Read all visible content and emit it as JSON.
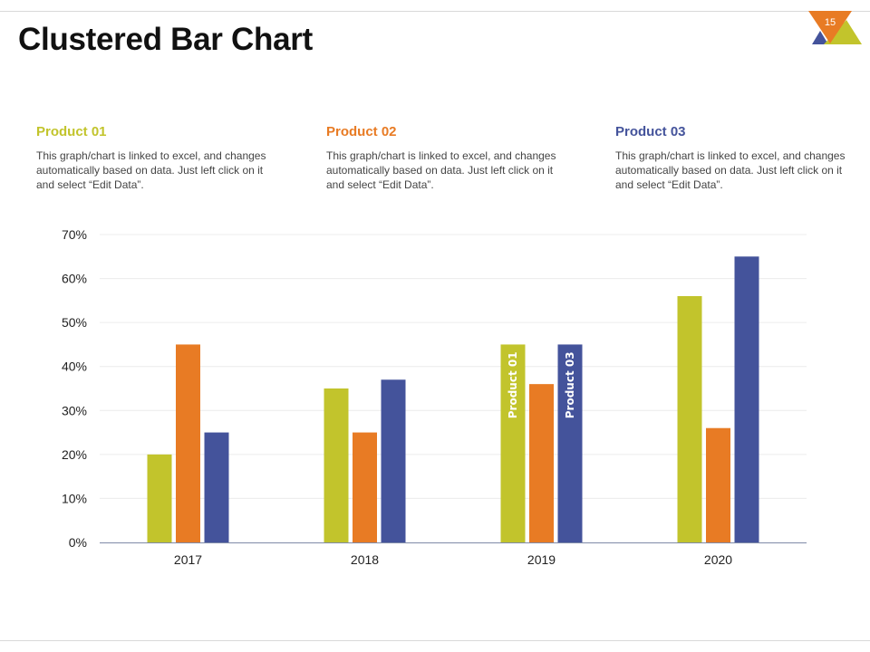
{
  "slide": {
    "title": "Clustered Bar Chart",
    "page_number": "15"
  },
  "products": [
    {
      "title": "Product 01",
      "description": "This graph/chart is linked to excel, and changes automatically based on data. Just left click on it and select “Edit Data”.",
      "color": "#c2c42c"
    },
    {
      "title": "Product 02",
      "description": "This graph/chart is linked to excel, and changes automatically based on data. Just left click on it and select “Edit Data”.",
      "color": "#e87b24"
    },
    {
      "title": "Product 03",
      "description": "This graph/chart is linked to excel, and changes automatically based on data. Just left click on it and select “Edit Data”.",
      "color": "#44539b"
    }
  ],
  "badge_colors": {
    "orange": "#e87b24",
    "green": "#c2c42c",
    "blue": "#44539b"
  },
  "chart_data": {
    "type": "bar",
    "title": "",
    "xlabel": "",
    "ylabel": "",
    "categories": [
      "2017",
      "2018",
      "2019",
      "2020"
    ],
    "series": [
      {
        "name": "Product 01",
        "values": [
          20,
          35,
          45,
          56
        ],
        "color": "#c2c42c"
      },
      {
        "name": "Product 02",
        "values": [
          45,
          25,
          36,
          26
        ],
        "color": "#e87b24"
      },
      {
        "name": "Product 03",
        "values": [
          25,
          37,
          45,
          65
        ],
        "color": "#44539b"
      }
    ],
    "ylim": [
      0,
      70
    ],
    "yticks": [
      "0%",
      "10%",
      "20%",
      "30%",
      "40%",
      "50%",
      "60%",
      "70%"
    ],
    "y_tick_values": [
      0,
      10,
      20,
      30,
      40,
      50,
      60,
      70
    ],
    "bar_labels": [
      {
        "category": "2019",
        "series": "Product 01",
        "text": "Product 01"
      },
      {
        "category": "2019",
        "series": "Product 03",
        "text": "Product 03"
      }
    ],
    "grid": true,
    "legend": "none"
  }
}
